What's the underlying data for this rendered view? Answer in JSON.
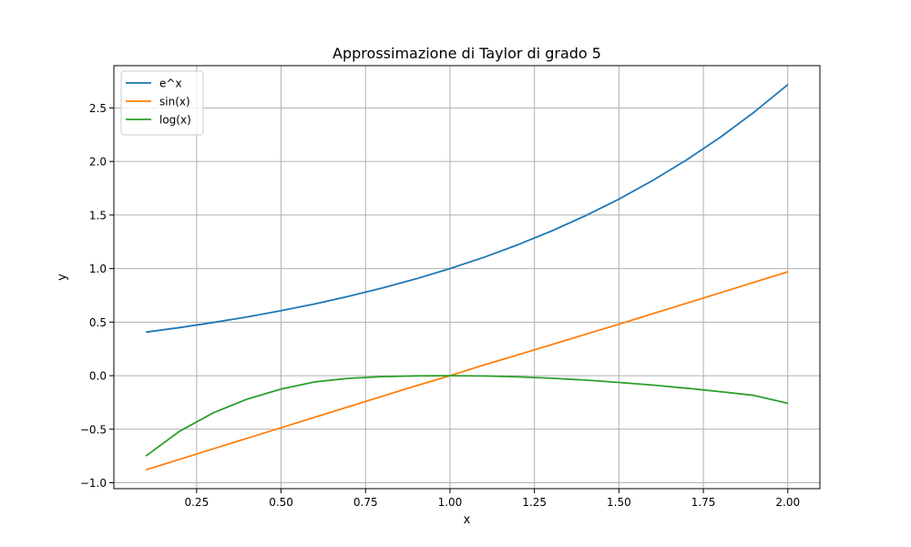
{
  "chart_data": {
    "type": "line",
    "title": "Approssimazione di Taylor di grado 5",
    "xlabel": "x",
    "ylabel": "y",
    "xlim": [
      0.005,
      2.095
    ],
    "ylim": [
      -1.055,
      2.895
    ],
    "xticks": [
      0.25,
      0.5,
      0.75,
      1.0,
      1.25,
      1.5,
      1.75,
      2.0
    ],
    "xtick_labels": [
      "0.25",
      "0.50",
      "0.75",
      "1.00",
      "1.25",
      "1.50",
      "1.75",
      "2.00"
    ],
    "yticks": [
      -1.0,
      -0.5,
      0.0,
      0.5,
      1.0,
      1.5,
      2.0,
      2.5
    ],
    "ytick_labels": [
      "−1.0",
      "−0.5",
      "0.0",
      "0.5",
      "1.0",
      "1.5",
      "2.0",
      "2.5"
    ],
    "grid": true,
    "legend_position": "top-left",
    "x": [
      0.1,
      0.2,
      0.3,
      0.4,
      0.5,
      0.6,
      0.7,
      0.8,
      0.9,
      1.0,
      1.1,
      1.2,
      1.3,
      1.4,
      1.5,
      1.6,
      1.7,
      1.8,
      1.9,
      2.0
    ],
    "series": [
      {
        "name": "e^x",
        "color": "#1f77b4",
        "values": [
          0.407,
          0.449,
          0.497,
          0.549,
          0.607,
          0.67,
          0.741,
          0.819,
          0.905,
          1.0,
          1.105,
          1.221,
          1.35,
          1.492,
          1.649,
          1.822,
          2.014,
          2.226,
          2.46,
          2.718
        ]
      },
      {
        "name": "sin(x)",
        "color": "#ff7f0e",
        "values": [
          -0.879,
          -0.781,
          -0.682,
          -0.584,
          -0.486,
          -0.388,
          -0.29,
          -0.192,
          -0.094,
          0.0,
          0.099,
          0.193,
          0.289,
          0.385,
          0.481,
          0.579,
          0.676,
          0.774,
          0.872,
          0.97
        ]
      },
      {
        "name": "log(x)",
        "color": "#2ca02c",
        "values": [
          -0.75,
          -0.518,
          -0.346,
          -0.218,
          -0.125,
          -0.058,
          -0.025,
          -0.009,
          -0.002,
          0.0,
          -0.003,
          -0.011,
          -0.024,
          -0.041,
          -0.063,
          -0.088,
          -0.117,
          -0.149,
          -0.184,
          -0.258
        ]
      }
    ]
  }
}
